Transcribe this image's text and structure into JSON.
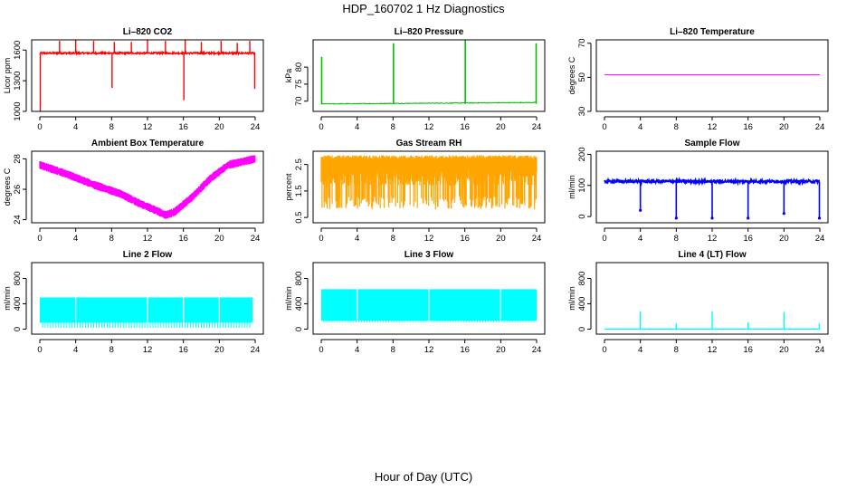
{
  "figure": {
    "title": "HDP_160702  1 Hz Diagnostics",
    "xlabel": "Hour of Day (UTC)"
  },
  "chart_data": [
    {
      "type": "line",
      "title": "Li–820 CO2",
      "ylabel": "Licor ppm",
      "xlim": [
        0,
        24
      ],
      "xticks": [
        0,
        4,
        8,
        12,
        16,
        20,
        24
      ],
      "ylim": [
        1000,
        1700
      ],
      "yticks": [
        1000,
        1300,
        1600
      ],
      "color": "#ff0000",
      "pattern": "co2",
      "base": 1570,
      "spikes_up": [
        [
          2.2,
          1690
        ],
        [
          4,
          1700
        ],
        [
          6,
          1690
        ],
        [
          8.3,
          1680
        ],
        [
          10.2,
          1680
        ],
        [
          12,
          1700
        ],
        [
          14,
          1690
        ],
        [
          16.2,
          1700
        ],
        [
          18,
          1680
        ],
        [
          20.2,
          1690
        ],
        [
          22,
          1670
        ],
        [
          23.4,
          1690
        ]
      ],
      "spikes_down": [
        [
          0.05,
          1000
        ],
        [
          8.05,
          1230
        ],
        [
          16.05,
          1110
        ],
        [
          23.95,
          1220
        ]
      ]
    },
    {
      "type": "line",
      "title": "Li–820 Pressure",
      "ylabel": "kPa",
      "xlim": [
        0,
        24
      ],
      "xticks": [
        0,
        4,
        8,
        12,
        16,
        20,
        24
      ],
      "ylim": [
        67,
        88
      ],
      "yticks": [
        70,
        75,
        80
      ],
      "color": "#00c000",
      "pattern": "pressure",
      "base_start": 69.2,
      "base_end": 69.6,
      "spikes_up": [
        [
          0.05,
          83
        ],
        [
          8.05,
          87
        ],
        [
          16.05,
          88
        ],
        [
          23.95,
          87
        ]
      ]
    },
    {
      "type": "line",
      "title": "Li–820 Temperature",
      "ylabel": "degrees C",
      "xlim": [
        0,
        24
      ],
      "xticks": [
        0,
        4,
        8,
        12,
        16,
        20,
        24
      ],
      "ylim": [
        30,
        72
      ],
      "yticks": [
        30,
        50,
        70
      ],
      "color": "#ff00ff",
      "pattern": "flat",
      "value": 51.5
    },
    {
      "type": "line",
      "title": "Ambient Box Temperature",
      "ylabel": "degrees C",
      "xlim": [
        0,
        24
      ],
      "xticks": [
        0,
        4,
        8,
        12,
        16,
        20,
        24
      ],
      "ylim": [
        23.8,
        28.5
      ],
      "yticks": [
        24,
        26,
        28
      ],
      "color": "#ff00ff",
      "pattern": "band",
      "band_width": 0.5,
      "x": [
        0,
        3,
        6,
        9,
        11,
        13,
        14,
        15,
        17,
        19,
        21,
        24
      ],
      "y": [
        27.6,
        27.0,
        26.3,
        25.7,
        25.1,
        24.6,
        24.3,
        24.5,
        25.5,
        26.7,
        27.6,
        28.0
      ]
    },
    {
      "type": "line",
      "title": "Gas Stream RH",
      "ylabel": "percent",
      "xlim": [
        0,
        24
      ],
      "xticks": [
        0,
        4,
        8,
        12,
        16,
        20,
        24
      ],
      "ylim": [
        0.3,
        3.0
      ],
      "yticks": [
        0.5,
        1.5,
        2.5
      ],
      "color": "#ffa500",
      "pattern": "noise",
      "upper": 2.85,
      "lower": 0.8,
      "dense": 1.7
    },
    {
      "type": "line",
      "title": "Sample Flow",
      "ylabel": "ml/min",
      "xlim": [
        0,
        24
      ],
      "xticks": [
        0,
        4,
        8,
        12,
        16,
        20,
        24
      ],
      "ylim": [
        -20,
        210
      ],
      "yticks": [
        0,
        100,
        200
      ],
      "color": "#0000ff",
      "pattern": "dips",
      "base": 113,
      "spikes_down": [
        [
          4,
          20
        ],
        [
          8,
          -5
        ],
        [
          12,
          -5
        ],
        [
          16,
          -5
        ],
        [
          20,
          10
        ],
        [
          23.95,
          -5
        ]
      ]
    },
    {
      "type": "line",
      "title": "Line 2 Flow",
      "ylabel": "ml/min",
      "xlim": [
        0,
        24
      ],
      "xticks": [
        0,
        4,
        8,
        12,
        16,
        20,
        24
      ],
      "ylim": [
        -80,
        1050
      ],
      "yticks": [
        0,
        400,
        800
      ],
      "color": "#00ffff",
      "pattern": "block",
      "top": 500,
      "bottom": 100,
      "comb_low": 20,
      "gaps": [
        4,
        12,
        16,
        20
      ],
      "end": 23.7
    },
    {
      "type": "line",
      "title": "Line 3 Flow",
      "ylabel": "ml/min",
      "xlim": [
        0,
        24
      ],
      "xticks": [
        0,
        4,
        8,
        12,
        16,
        20,
        24
      ],
      "ylim": [
        -80,
        1050
      ],
      "yticks": [
        0,
        400,
        800
      ],
      "color": "#00ffff",
      "pattern": "block",
      "top": 630,
      "bottom": 130,
      "comb_low": 110,
      "gaps": [
        4,
        12,
        20
      ],
      "end": 24
    },
    {
      "type": "line",
      "title": "Line 4 (LT) Flow",
      "ylabel": "ml/min",
      "xlim": [
        0,
        24
      ],
      "xticks": [
        0,
        4,
        8,
        12,
        16,
        20,
        24
      ],
      "ylim": [
        -80,
        1050
      ],
      "yticks": [
        0,
        400,
        800
      ],
      "color": "#00ffff",
      "pattern": "pulses",
      "base": 0,
      "spikes_up": [
        [
          4,
          280
        ],
        [
          8,
          90
        ],
        [
          12,
          280
        ],
        [
          16,
          110
        ],
        [
          20,
          270
        ],
        [
          23.95,
          90
        ]
      ]
    }
  ]
}
